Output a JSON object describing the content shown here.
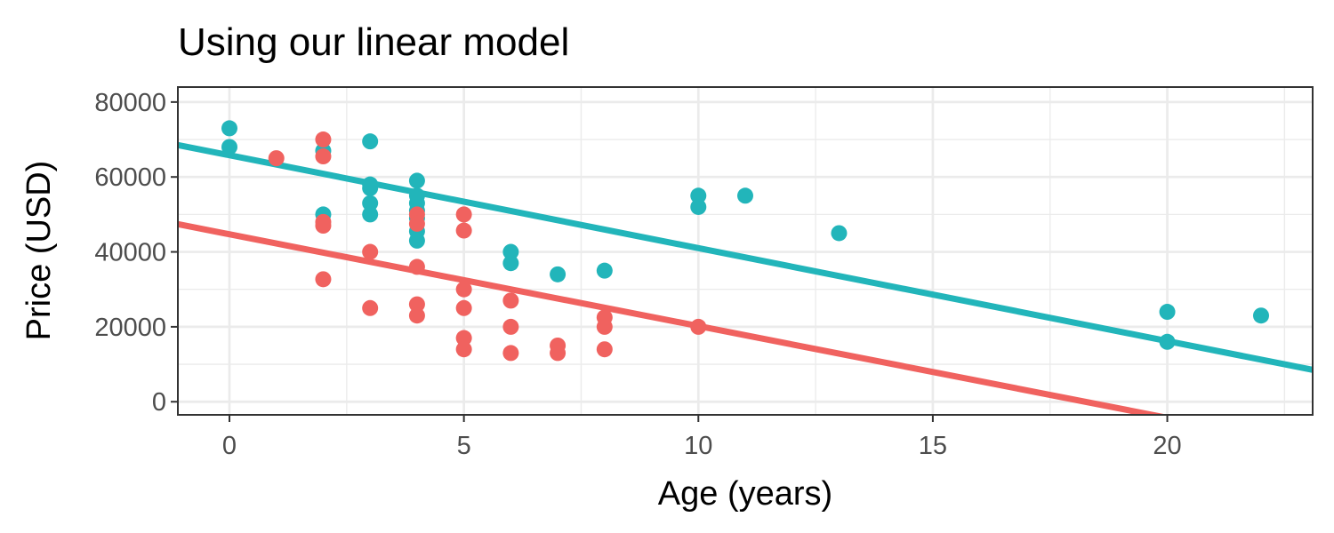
{
  "chart_data": {
    "type": "scatter",
    "title": "Using our linear model",
    "xlabel": "Age (years)",
    "ylabel": "Price (USD)",
    "xlim": [
      -1.1,
      23.1
    ],
    "ylim": [
      -3500,
      84000
    ],
    "x_ticks": [
      0,
      5,
      10,
      15,
      20
    ],
    "y_ticks": [
      0,
      20000,
      40000,
      60000,
      80000
    ],
    "x_tick_labels": [
      "0",
      "5",
      "10",
      "15",
      "20"
    ],
    "y_tick_labels": [
      "0",
      "20000",
      "40000",
      "60000",
      "80000"
    ],
    "x_minor_ticks": [
      2.5,
      7.5,
      12.5,
      17.5,
      22.5
    ],
    "y_minor_ticks": [
      10000,
      30000,
      50000,
      70000
    ],
    "grid": true,
    "legend": "none",
    "series": [
      {
        "color": "#00BFC4",
        "draw_color": "#22B5BA",
        "points": [
          [
            0,
            73000
          ],
          [
            0,
            68000
          ],
          [
            2,
            67000
          ],
          [
            2,
            50000
          ],
          [
            3,
            69500
          ],
          [
            3,
            58000
          ],
          [
            3,
            57000
          ],
          [
            3,
            53000
          ],
          [
            3,
            50000
          ],
          [
            4,
            59000
          ],
          [
            4,
            55000
          ],
          [
            4,
            53000
          ],
          [
            4,
            51000
          ],
          [
            4,
            49000
          ],
          [
            4,
            45500
          ],
          [
            4,
            43000
          ],
          [
            6,
            40000
          ],
          [
            6,
            37000
          ],
          [
            7,
            34000
          ],
          [
            8,
            35000
          ],
          [
            10,
            55000
          ],
          [
            10,
            52000
          ],
          [
            11,
            55000
          ],
          [
            13,
            45000
          ],
          [
            20,
            24000
          ],
          [
            20,
            16000
          ],
          [
            22,
            23000
          ]
        ],
        "fit_line": {
          "intercept": 65800,
          "slope": -2480
        }
      },
      {
        "color": "#F8766D",
        "draw_color": "#F0625F",
        "points": [
          [
            1,
            65000
          ],
          [
            2,
            70000
          ],
          [
            2,
            65500
          ],
          [
            2,
            48000
          ],
          [
            2,
            47000
          ],
          [
            2,
            32700
          ],
          [
            3,
            40000
          ],
          [
            3,
            25000
          ],
          [
            4,
            50000
          ],
          [
            4,
            47500
          ],
          [
            4,
            36000
          ],
          [
            4,
            26000
          ],
          [
            4,
            23000
          ],
          [
            5,
            50000
          ],
          [
            5,
            45700
          ],
          [
            5,
            30000
          ],
          [
            5,
            25000
          ],
          [
            5,
            17000
          ],
          [
            5,
            14000
          ],
          [
            6,
            27000
          ],
          [
            6,
            20000
          ],
          [
            6,
            13000
          ],
          [
            7,
            15000
          ],
          [
            7,
            13000
          ],
          [
            8,
            22500
          ],
          [
            8,
            20000
          ],
          [
            8,
            14000
          ],
          [
            10,
            20000
          ]
        ],
        "fit_line": {
          "intercept": 44700,
          "slope": -2450
        }
      }
    ]
  }
}
